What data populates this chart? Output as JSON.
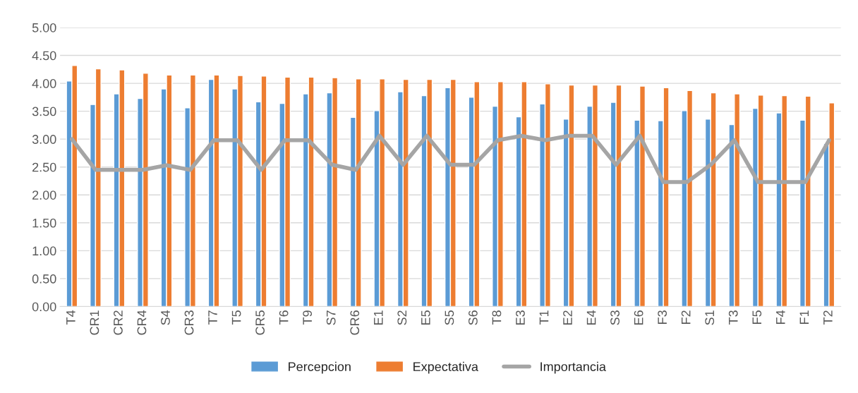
{
  "chart_data": {
    "type": "bar",
    "categories": [
      "T4",
      "CR1",
      "CR2",
      "CR4",
      "S4",
      "CR3",
      "T7",
      "T5",
      "CR5",
      "T6",
      "T9",
      "S7",
      "CR6",
      "E1",
      "S2",
      "E5",
      "S5",
      "S6",
      "T8",
      "E3",
      "T1",
      "E2",
      "E4",
      "S3",
      "E6",
      "F3",
      "F2",
      "S1",
      "T3",
      "F5",
      "F4",
      "F1",
      "T2"
    ],
    "series": [
      {
        "name": "Percepcion",
        "color": "#5b9bd5",
        "values": [
          4.04,
          3.62,
          3.81,
          3.73,
          3.9,
          3.56,
          4.07,
          3.9,
          3.67,
          3.64,
          3.81,
          3.83,
          3.39,
          3.51,
          3.85,
          3.78,
          3.92,
          3.75,
          3.59,
          3.4,
          3.63,
          3.36,
          3.59,
          3.66,
          3.34,
          3.33,
          3.51,
          3.36,
          3.26,
          3.55,
          3.47,
          3.34,
          2.92
        ]
      },
      {
        "name": "Expectativa",
        "color": "#ed7d31",
        "values": [
          4.32,
          4.26,
          4.24,
          4.18,
          4.15,
          4.15,
          4.15,
          4.14,
          4.13,
          4.11,
          4.11,
          4.1,
          4.08,
          4.08,
          4.07,
          4.07,
          4.07,
          4.03,
          4.03,
          4.03,
          3.99,
          3.97,
          3.97,
          3.97,
          3.95,
          3.92,
          3.87,
          3.83,
          3.81,
          3.79,
          3.78,
          3.77,
          3.65
        ]
      },
      {
        "name": "Importancia",
        "type": "line",
        "color": "#a5a5a5",
        "values": [
          3.0,
          2.45,
          2.45,
          2.45,
          2.53,
          2.45,
          2.98,
          2.98,
          2.45,
          2.98,
          2.98,
          2.54,
          2.45,
          3.06,
          2.54,
          3.06,
          2.54,
          2.54,
          2.98,
          3.06,
          2.98,
          3.06,
          3.06,
          2.54,
          3.06,
          2.23,
          2.23,
          2.54,
          2.98,
          2.23,
          2.23,
          2.23,
          2.98
        ]
      }
    ],
    "ylim": [
      0,
      5
    ],
    "yticks": [
      {
        "value": 0,
        "label": "0.00"
      },
      {
        "value": 0.5,
        "label": "0.50"
      },
      {
        "value": 1,
        "label": "1.00"
      },
      {
        "value": 1.5,
        "label": "1.50"
      },
      {
        "value": 2,
        "label": "2.00"
      },
      {
        "value": 2.5,
        "label": "2.50"
      },
      {
        "value": 3,
        "label": "3.00"
      },
      {
        "value": 3.5,
        "label": "3.50"
      },
      {
        "value": 4,
        "label": "4.00"
      },
      {
        "value": 4.5,
        "label": "4.50"
      },
      {
        "value": 5,
        "label": "5.00"
      }
    ],
    "grid": "y",
    "legend": "bottom"
  }
}
